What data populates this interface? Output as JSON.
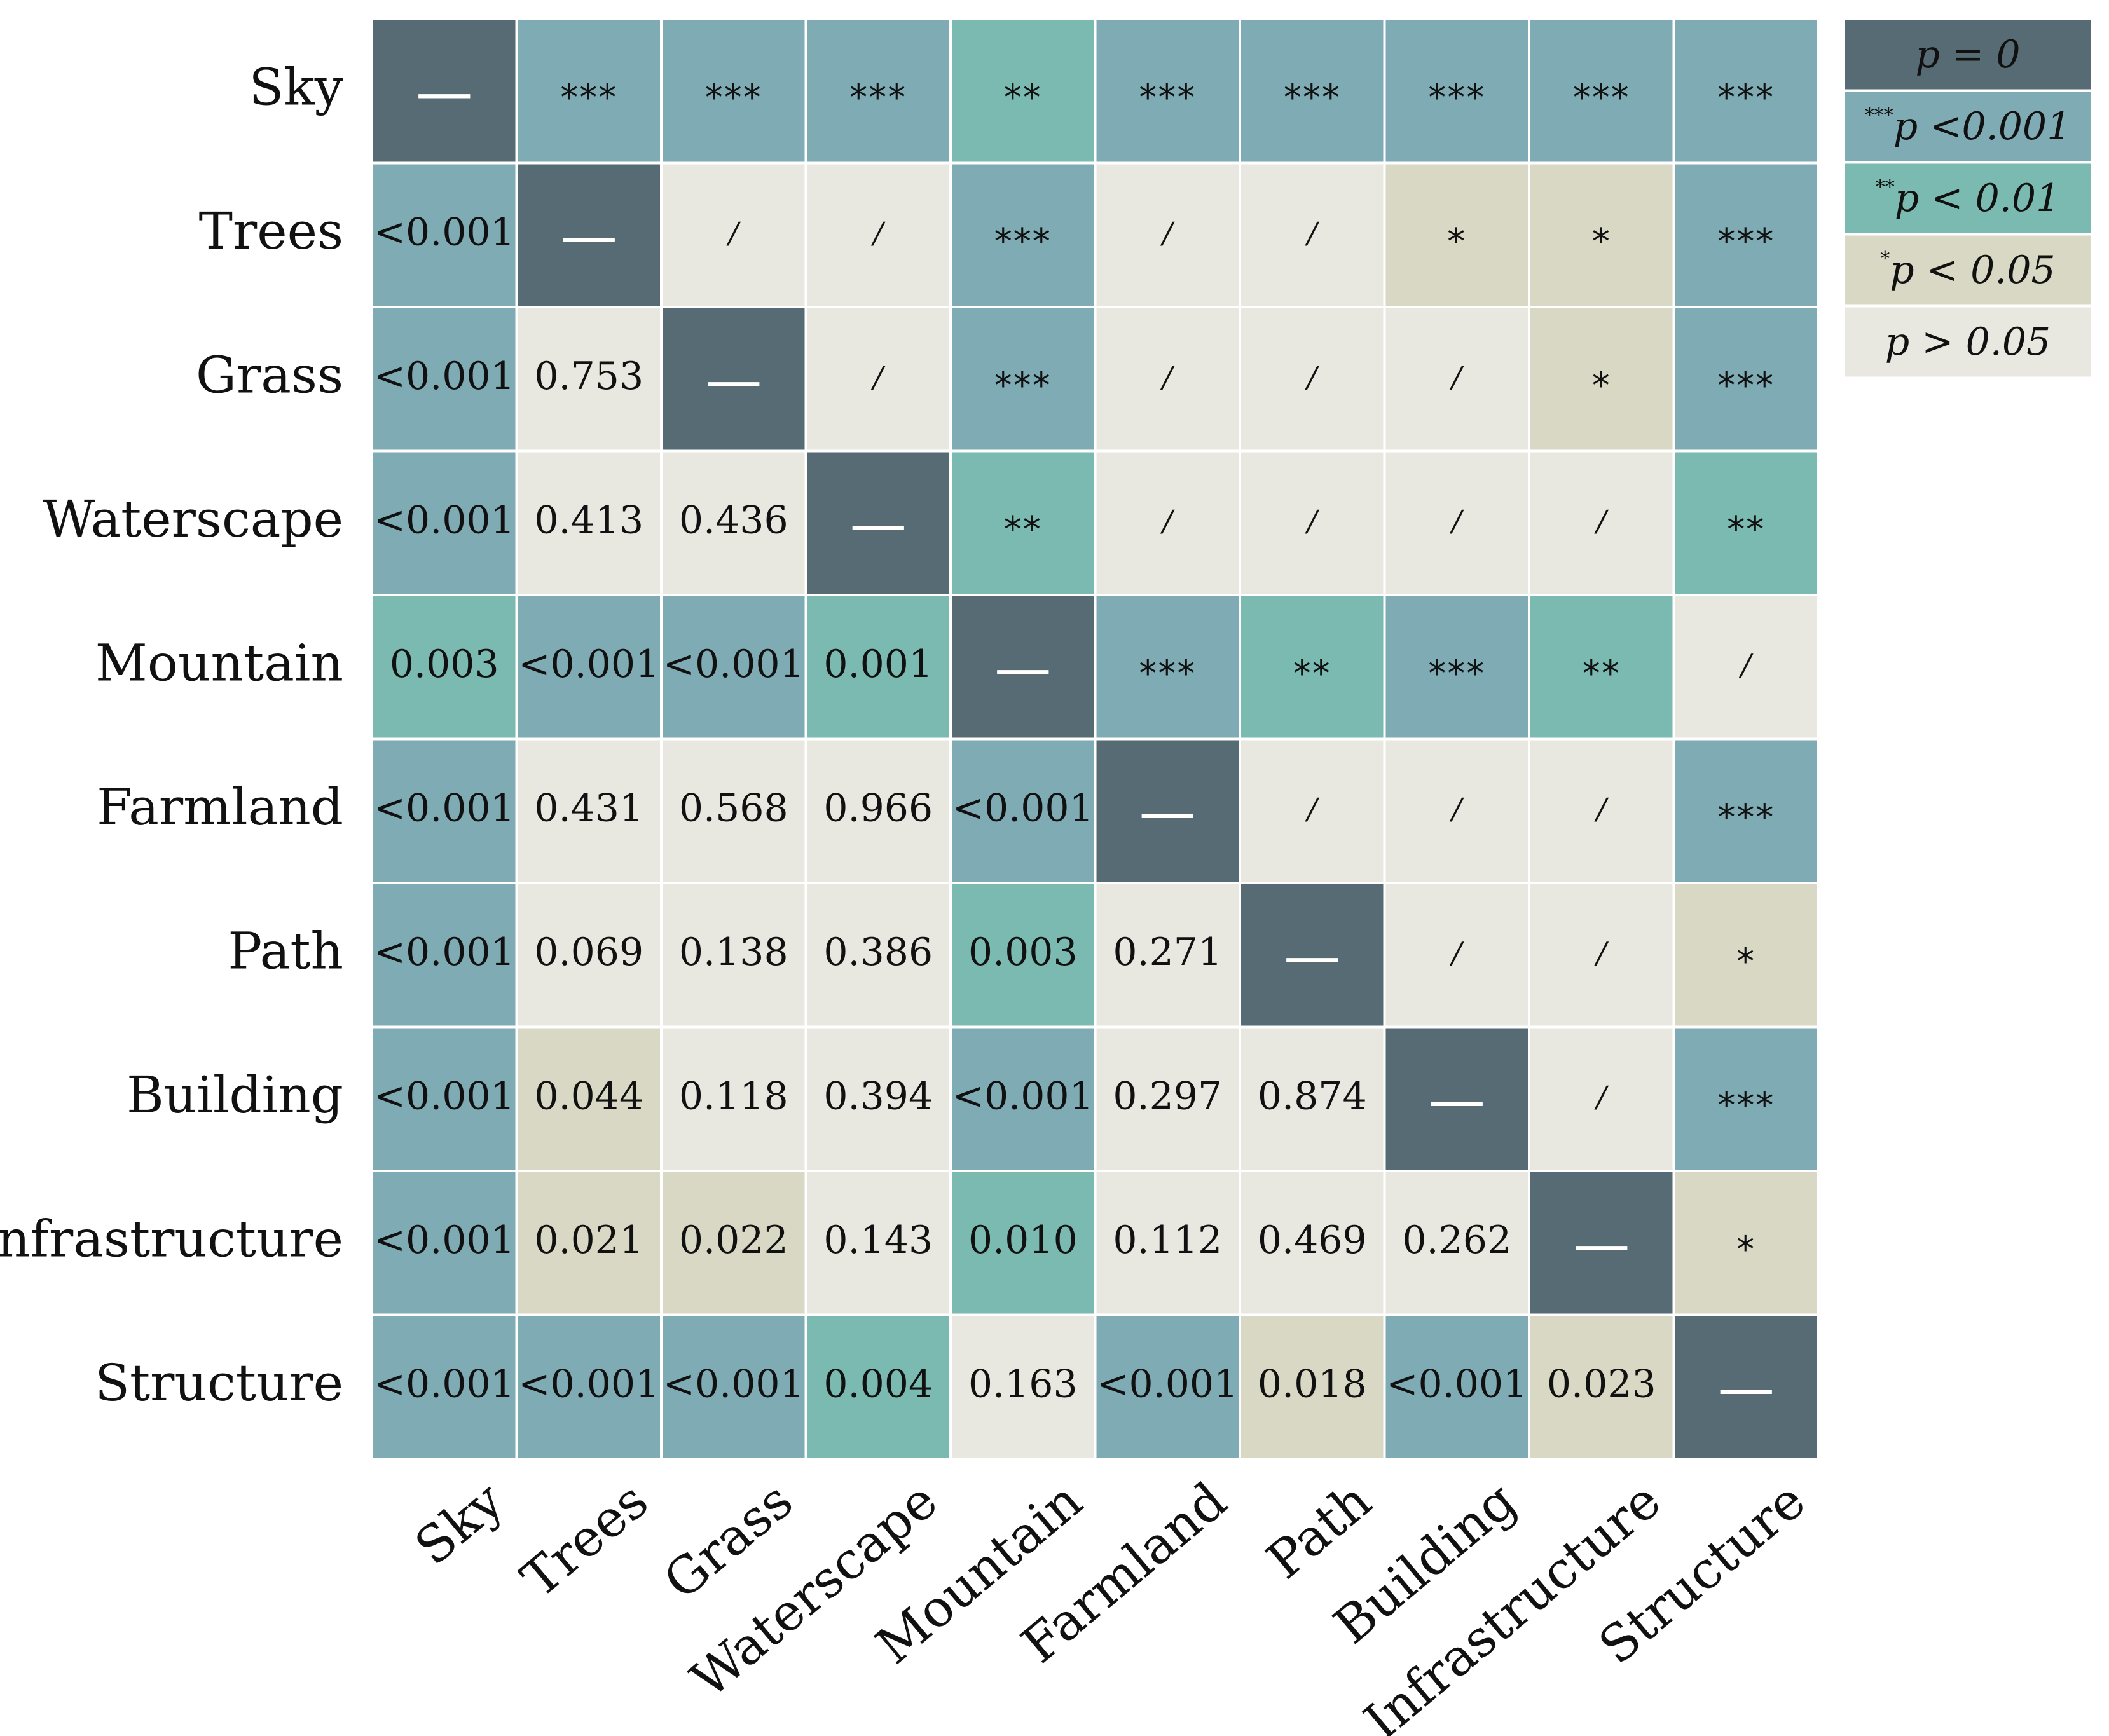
{
  "chart_data": {
    "type": "heatmap",
    "labels": [
      "Sky",
      "Trees",
      "Grass",
      "Waterscape",
      "Mountain",
      "Farmland",
      "Path",
      "Building",
      "Infrastructure",
      "Structure"
    ],
    "matrix": [
      [
        "—",
        "***",
        "***",
        "***",
        "**",
        "***",
        "***",
        "***",
        "***",
        "***"
      ],
      [
        "<0.001",
        "—",
        "/",
        "/",
        "***",
        "/",
        "/",
        "*",
        "*",
        "***"
      ],
      [
        "<0.001",
        "0.753",
        "—",
        "/",
        "***",
        "/",
        "/",
        "/",
        "*",
        "***"
      ],
      [
        "<0.001",
        "0.413",
        "0.436",
        "—",
        "**",
        "/",
        "/",
        "/",
        "/",
        "**"
      ],
      [
        "0.003",
        "<0.001",
        "<0.001",
        "0.001",
        "—",
        "***",
        "**",
        "***",
        "**",
        "/"
      ],
      [
        "<0.001",
        "0.431",
        "0.568",
        "0.966",
        "<0.001",
        "—",
        "/",
        "/",
        "/",
        "***"
      ],
      [
        "<0.001",
        "0.069",
        "0.138",
        "0.386",
        "0.003",
        "0.271",
        "—",
        "/",
        "/",
        "*"
      ],
      [
        "<0.001",
        "0.044",
        "0.118",
        "0.394",
        "<0.001",
        "0.297",
        "0.874",
        "—",
        "/",
        "***"
      ],
      [
        "<0.001",
        "0.021",
        "0.022",
        "0.143",
        "0.010",
        "0.112",
        "0.469",
        "0.262",
        "—",
        "*"
      ],
      [
        "<0.001",
        "<0.001",
        "<0.001",
        "0.004",
        "0.163",
        "<0.001",
        "0.018",
        "<0.001",
        "0.023",
        "—"
      ]
    ],
    "categories": [
      [
        "p0",
        "p001",
        "p001",
        "p001",
        "p01",
        "p001",
        "p001",
        "p001",
        "p001",
        "p001"
      ],
      [
        "p001",
        "p0",
        "ns",
        "ns",
        "p001",
        "ns",
        "ns",
        "p05",
        "p05",
        "p001"
      ],
      [
        "p001",
        "ns",
        "p0",
        "ns",
        "p001",
        "ns",
        "ns",
        "ns",
        "p05",
        "p001"
      ],
      [
        "p001",
        "ns",
        "ns",
        "p0",
        "p01",
        "ns",
        "ns",
        "ns",
        "ns",
        "p01"
      ],
      [
        "p01",
        "p001",
        "p001",
        "p01",
        "p0",
        "p001",
        "p01",
        "p001",
        "p01",
        "ns"
      ],
      [
        "p001",
        "ns",
        "ns",
        "ns",
        "p001",
        "p0",
        "ns",
        "ns",
        "ns",
        "p001"
      ],
      [
        "p001",
        "ns",
        "ns",
        "ns",
        "p01",
        "ns",
        "p0",
        "ns",
        "ns",
        "p05"
      ],
      [
        "p001",
        "p05",
        "ns",
        "ns",
        "p001",
        "ns",
        "ns",
        "p0",
        "ns",
        "p001"
      ],
      [
        "p001",
        "p05",
        "p05",
        "ns",
        "p01",
        "ns",
        "ns",
        "ns",
        "p0",
        "p05"
      ],
      [
        "p001",
        "p001",
        "p001",
        "p01",
        "ns",
        "p001",
        "p05",
        "p001",
        "p05",
        "p0"
      ]
    ],
    "colors": {
      "p0": "#566b74",
      "p001": "#7fabb4",
      "p01": "#7bbab1",
      "p05": "#d8d8c5",
      "ns": "#e8e8e0"
    },
    "legend": [
      {
        "key": "p0",
        "sup": "",
        "label": "p = 0",
        "placement": "top-right"
      },
      {
        "key": "p001",
        "sup": "***",
        "label": "p <0.001"
      },
      {
        "key": "p01",
        "sup": "**",
        "label": "p < 0.01"
      },
      {
        "key": "p05",
        "sup": "*",
        "label": "p < 0.05"
      },
      {
        "key": "ns",
        "sup": "",
        "label": "p > 0.05"
      }
    ],
    "grid": true,
    "title": "",
    "xlabel": "",
    "ylabel": ""
  }
}
